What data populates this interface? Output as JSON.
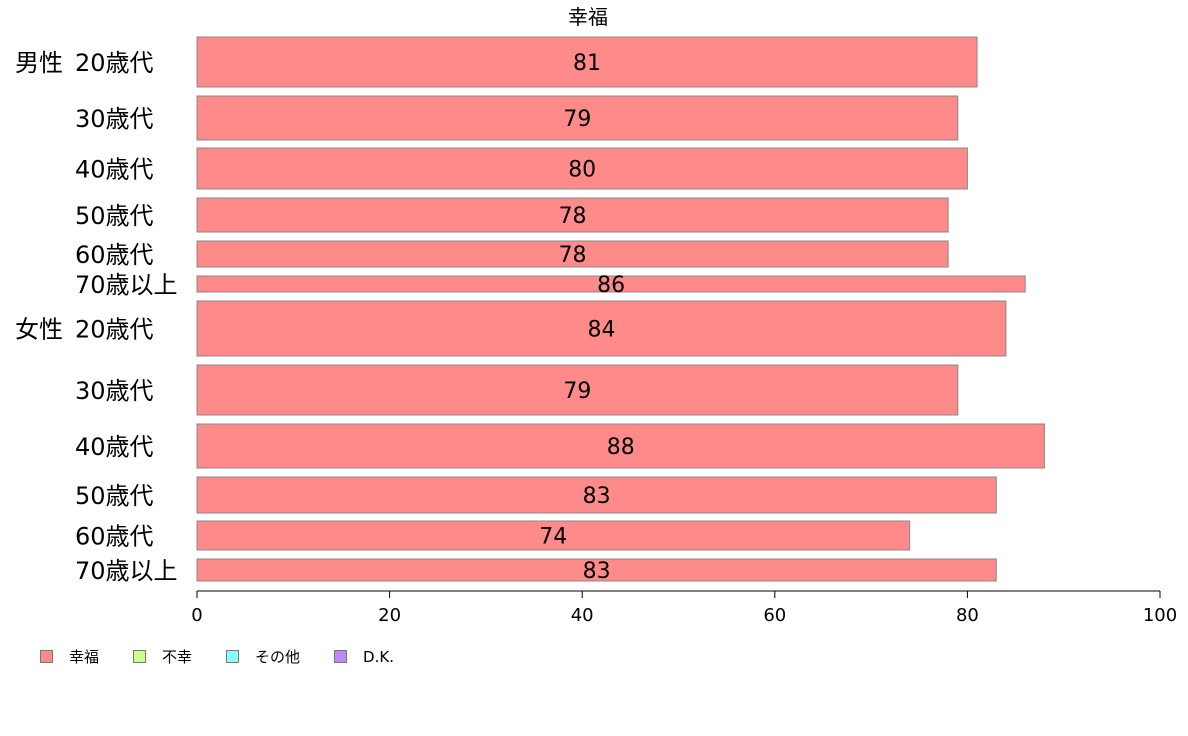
{
  "chart_data": {
    "type": "bar",
    "orientation": "horizontal",
    "title": "幸福",
    "groups": [
      {
        "label": "男性",
        "categories": [
          "20歳代",
          "30歳代",
          "40歳代",
          "50歳代",
          "60歳代",
          "70歳以上"
        ]
      },
      {
        "label": "女性",
        "categories": [
          "20歳代",
          "30歳代",
          "40歳代",
          "50歳代",
          "60歳代",
          "70歳以上"
        ]
      }
    ],
    "series": [
      {
        "name": "幸福",
        "color": "#ff8a8a",
        "values": [
          81,
          79,
          80,
          78,
          78,
          86,
          84,
          79,
          88,
          83,
          74,
          83
        ]
      }
    ],
    "xlim": [
      0,
      100
    ],
    "xticks": [
      0,
      20,
      40,
      60,
      80,
      100
    ],
    "legend": [
      {
        "name": "幸福",
        "color": "#ff8a8a"
      },
      {
        "name": "不幸",
        "color": "#ccff88"
      },
      {
        "name": "その他",
        "color": "#88ffff"
      },
      {
        "name": "D.K.",
        "color": "#bb88ff"
      }
    ],
    "legend_position": "bottom-left",
    "grid": false
  }
}
